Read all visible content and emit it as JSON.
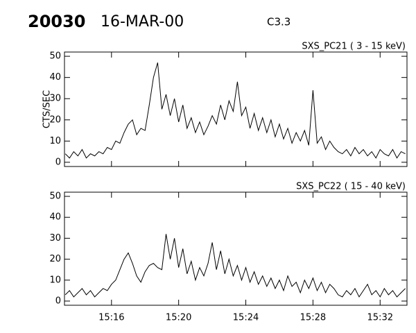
{
  "header": {
    "id": "20030",
    "date": "16-MAR-00",
    "class": "C3.3"
  },
  "chart_data": [
    {
      "type": "line",
      "title": "SXS_PC21  (  3 - 15 keV)",
      "y_label": "CTS/SEC",
      "color": "#000000",
      "x": [
        13.25,
        13.5,
        13.75,
        14,
        14.25,
        14.5,
        14.75,
        15,
        15.25,
        15.5,
        15.75,
        16,
        16.25,
        16.5,
        16.75,
        17,
        17.25,
        17.5,
        17.75,
        18,
        18.25,
        18.5,
        18.75,
        19,
        19.25,
        19.5,
        19.75,
        20,
        20.25,
        20.5,
        20.75,
        21,
        21.25,
        21.5,
        21.75,
        22,
        22.25,
        22.5,
        22.75,
        23,
        23.25,
        23.5,
        23.75,
        24,
        24.25,
        24.5,
        24.75,
        25,
        25.25,
        25.5,
        25.75,
        26,
        26.25,
        26.5,
        26.75,
        27,
        27.25,
        27.5,
        27.75,
        28,
        28.25,
        28.5,
        28.75,
        29,
        29.25,
        29.5,
        29.75,
        30,
        30.25,
        30.5,
        30.75,
        31,
        31.25,
        31.5,
        31.75,
        32,
        32.25,
        32.5,
        32.75,
        33,
        33.25,
        33.5
      ],
      "values": [
        4,
        2,
        5,
        3,
        6,
        2,
        4,
        3,
        5,
        4,
        7,
        6,
        10,
        9,
        14,
        18,
        20,
        13,
        16,
        15,
        27,
        40,
        47,
        25,
        32,
        22,
        30,
        19,
        27,
        16,
        21,
        14,
        19,
        13,
        17,
        22,
        18,
        27,
        20,
        29,
        24,
        38,
        22,
        26,
        16,
        23,
        15,
        21,
        14,
        20,
        12,
        18,
        11,
        16,
        9,
        14,
        10,
        15,
        8,
        34,
        9,
        12,
        6,
        10,
        7,
        5,
        4,
        6,
        3,
        7,
        4,
        6,
        3,
        5,
        2,
        6,
        4,
        3,
        6,
        2,
        5,
        4
      ],
      "xlim": [
        13.2,
        33.6
      ],
      "ylim": [
        -2,
        52
      ],
      "yticks": [
        0,
        10,
        20,
        30,
        40,
        50
      ]
    },
    {
      "type": "line",
      "title": "SXS_PC22  ( 15 - 40 keV)",
      "color": "#000000",
      "x": [
        13.25,
        13.5,
        13.75,
        14,
        14.25,
        14.5,
        14.75,
        15,
        15.25,
        15.5,
        15.75,
        16,
        16.25,
        16.5,
        16.75,
        17,
        17.25,
        17.5,
        17.75,
        18,
        18.25,
        18.5,
        18.75,
        19,
        19.25,
        19.5,
        19.75,
        20,
        20.25,
        20.5,
        20.75,
        21,
        21.25,
        21.5,
        21.75,
        22,
        22.25,
        22.5,
        22.75,
        23,
        23.25,
        23.5,
        23.75,
        24,
        24.25,
        24.5,
        24.75,
        25,
        25.25,
        25.5,
        25.75,
        26,
        26.25,
        26.5,
        26.75,
        27,
        27.25,
        27.5,
        27.75,
        28,
        28.25,
        28.5,
        28.75,
        29,
        29.25,
        29.5,
        29.75,
        30,
        30.25,
        30.5,
        30.75,
        31,
        31.25,
        31.5,
        31.75,
        32,
        32.25,
        32.5,
        32.75,
        33,
        33.25,
        33.5
      ],
      "values": [
        3,
        5,
        2,
        4,
        6,
        3,
        5,
        2,
        4,
        6,
        5,
        8,
        10,
        15,
        20,
        23,
        18,
        12,
        9,
        14,
        17,
        18,
        16,
        15,
        32,
        20,
        30,
        16,
        25,
        13,
        19,
        10,
        16,
        12,
        18,
        28,
        15,
        24,
        13,
        20,
        12,
        17,
        10,
        16,
        9,
        14,
        8,
        12,
        7,
        11,
        6,
        10,
        5,
        12,
        7,
        9,
        4,
        10,
        6,
        11,
        5,
        9,
        4,
        8,
        6,
        3,
        2,
        5,
        3,
        6,
        2,
        5,
        8,
        3,
        5,
        2,
        6,
        3,
        5,
        2,
        4,
        6
      ],
      "xlim": [
        13.2,
        33.6
      ],
      "ylim": [
        -2,
        52
      ],
      "yticks": [
        0,
        10,
        20,
        30,
        40,
        50
      ],
      "xticks": [
        {
          "value": 16,
          "label": "15:16"
        },
        {
          "value": 20,
          "label": "15:20"
        },
        {
          "value": 24,
          "label": "15:24"
        },
        {
          "value": 28,
          "label": "15:28"
        },
        {
          "value": 32,
          "label": "15:32"
        }
      ]
    }
  ]
}
